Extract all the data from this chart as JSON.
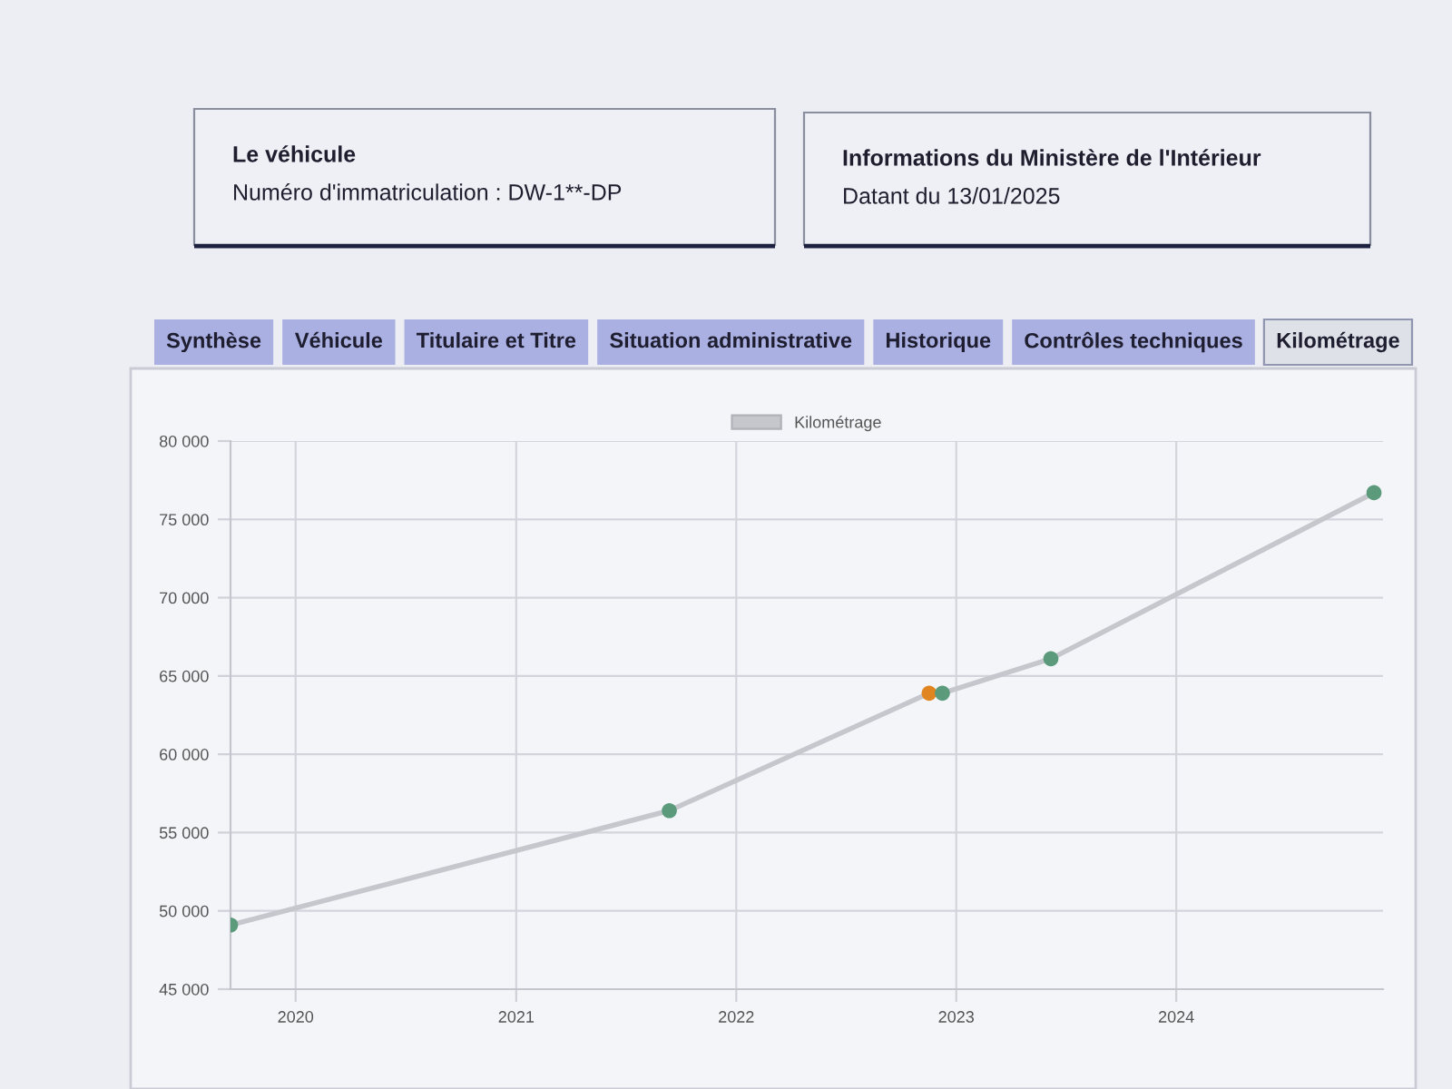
{
  "chart_data": {
    "type": "line",
    "annotations": [
      "Le véhicule",
      "Numéro d'immatriculation : DW-1**-DP",
      "Informations du Ministère de l'Intérieur",
      "Datant du 13/01/2025",
      "Synthèse",
      "Véhicule",
      "Titulaire et Titre",
      "Situation administrative",
      "Historique",
      "Contrôles techniques",
      "Kilométrage"
    ],
    "x": [
      "2019-09-15",
      "2021-09-12",
      "2022-11-17",
      "2022-12-09",
      "2023-06-07",
      "2024-11-24"
    ],
    "series": [
      {
        "name": "Kilométrage",
        "color": "#c5c7cd",
        "colors": [
          "#5c9a7c",
          "#5c9a7c",
          "#e0851f",
          "#5c9a7c",
          "#5c9a7c",
          "#5c9a7c"
        ],
        "values": [
          49100,
          56400,
          63900,
          63900,
          66100,
          76700
        ]
      }
    ],
    "xlim": [
      "2019-09-15",
      "2024-12-09"
    ],
    "xticks": [
      "2020",
      "2021",
      "2022",
      "2023",
      "2024"
    ],
    "ylim": [
      45000,
      80000
    ],
    "yticks": [
      {
        "value": 45000,
        "label": "45 000"
      },
      {
        "value": 50000,
        "label": "50 000"
      },
      {
        "value": 55000,
        "label": "55 000"
      },
      {
        "value": 60000,
        "label": "60 000"
      },
      {
        "value": 65000,
        "label": "65 000"
      },
      {
        "value": 70000,
        "label": "70 000"
      },
      {
        "value": 75000,
        "label": "75 000"
      },
      {
        "value": 80000,
        "label": "80 000"
      }
    ],
    "grid": true,
    "legend": "top",
    "marker": "circle",
    "line_style": "solid"
  }
}
